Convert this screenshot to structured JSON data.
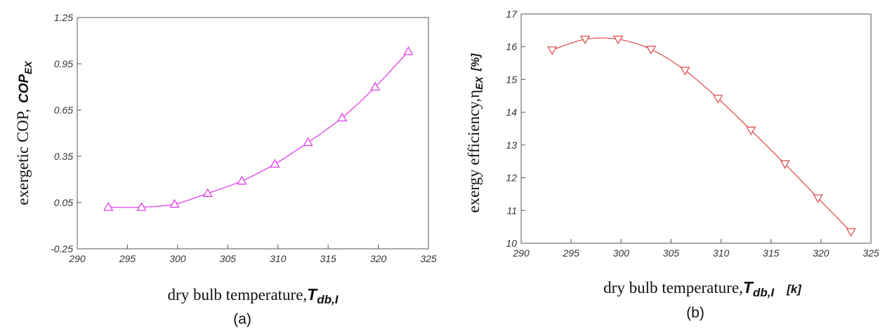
{
  "chart_data": [
    {
      "type": "line",
      "panel_label": "(a)",
      "xlabel": {
        "text": "dry bulb temperature,",
        "symbol": "T",
        "subscript": "db,I"
      },
      "ylabel": {
        "text": "exergetic COP,",
        "symbol": "COP",
        "subscript": "EX"
      },
      "xlim": [
        290,
        325
      ],
      "ylim": [
        -0.25,
        1.25
      ],
      "xticks": [
        "290",
        "295",
        "300",
        "305",
        "310",
        "315",
        "320",
        "325"
      ],
      "yticks": [
        "-0.25",
        "0.05",
        "0.35",
        "0.65",
        "0.95",
        "1.25"
      ],
      "grid": false,
      "marker": "triangle-up",
      "color": "#e040e8",
      "series": [
        {
          "x": [
            293.1,
            296.4,
            299.7,
            303.0,
            306.4,
            309.7,
            313.0,
            316.4,
            319.7,
            323.0
          ],
          "y": [
            0.02,
            0.02,
            0.04,
            0.11,
            0.19,
            0.3,
            0.44,
            0.6,
            0.8,
            1.03
          ]
        }
      ]
    },
    {
      "type": "line",
      "panel_label": "(b)",
      "xlabel": {
        "text": "dry bulb temperature,",
        "symbol": "T",
        "subscript": "db,I",
        "unit": "[k]"
      },
      "ylabel": {
        "text": "exergy efficiency,",
        "symbol": "η",
        "subscript": "EX",
        "unit": "[%]"
      },
      "xlim": [
        290,
        325
      ],
      "ylim": [
        10,
        17
      ],
      "xticks": [
        "290",
        "295",
        "300",
        "305",
        "310",
        "315",
        "320",
        "325"
      ],
      "yticks": [
        "10",
        "11",
        "12",
        "13",
        "14",
        "15",
        "16",
        "17"
      ],
      "grid": false,
      "marker": "triangle-down",
      "color": "#e05050",
      "series": [
        {
          "x": [
            293.1,
            296.4,
            299.7,
            303.0,
            306.4,
            309.7,
            313.0,
            316.4,
            319.7,
            323.0
          ],
          "y": [
            15.9,
            16.23,
            16.23,
            15.92,
            15.28,
            14.42,
            13.45,
            12.42,
            11.38,
            10.35
          ]
        }
      ]
    }
  ]
}
